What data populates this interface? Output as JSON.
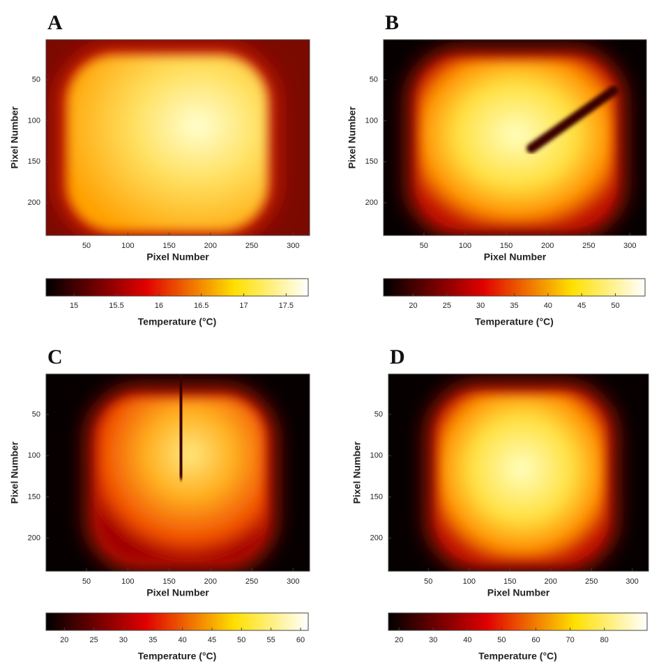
{
  "chart_data": [
    {
      "type": "heatmap",
      "title": "A",
      "xlabel": "Pixel Number",
      "ylabel": "Pixel Number",
      "xlim": [
        1,
        320
      ],
      "ylim": [
        1,
        240
      ],
      "xticks": [
        50,
        100,
        150,
        200,
        250,
        300
      ],
      "yticks": [
        50,
        100,
        150,
        200
      ],
      "colormap": "hot",
      "clim": [
        14.67,
        17.76
      ],
      "cticks": [
        15,
        15.5,
        16,
        16.5,
        17,
        17.5
      ],
      "clabel": "Temperature (°C)"
    },
    {
      "type": "heatmap",
      "title": "B",
      "xlabel": "Pixel Number",
      "ylabel": "Pixel Number",
      "xlim": [
        1,
        320
      ],
      "ylim": [
        1,
        240
      ],
      "xticks": [
        50,
        100,
        150,
        200,
        250,
        300
      ],
      "yticks": [
        50,
        100,
        150,
        200
      ],
      "colormap": "hot",
      "clim": [
        15.6,
        54.4
      ],
      "cticks": [
        20,
        25,
        30,
        35,
        40,
        45,
        50
      ],
      "clabel": "Temperature (°C)"
    },
    {
      "type": "heatmap",
      "title": "C",
      "xlabel": "Pixel Number",
      "ylabel": "Pixel Number",
      "xlim": [
        1,
        320
      ],
      "ylim": [
        1,
        240
      ],
      "xticks": [
        50,
        100,
        150,
        200,
        250,
        300
      ],
      "yticks": [
        50,
        100,
        150,
        200
      ],
      "colormap": "hot",
      "clim": [
        16.9,
        61.3
      ],
      "cticks": [
        20,
        25,
        30,
        35,
        40,
        45,
        50,
        55,
        60
      ],
      "clabel": "Temperature (°C)"
    },
    {
      "type": "heatmap",
      "title": "D",
      "xlabel": "Pixel Number",
      "ylabel": "Pixel Number",
      "xlim": [
        1,
        320
      ],
      "ylim": [
        1,
        240
      ],
      "xticks": [
        50,
        100,
        150,
        200,
        250,
        300
      ],
      "yticks": [
        50,
        100,
        150,
        200
      ],
      "colormap": "hot",
      "clim": [
        16.9,
        92.5
      ],
      "cticks": [
        20,
        30,
        40,
        50,
        60,
        70,
        80
      ],
      "clabel": "Temperature (°C)"
    }
  ]
}
